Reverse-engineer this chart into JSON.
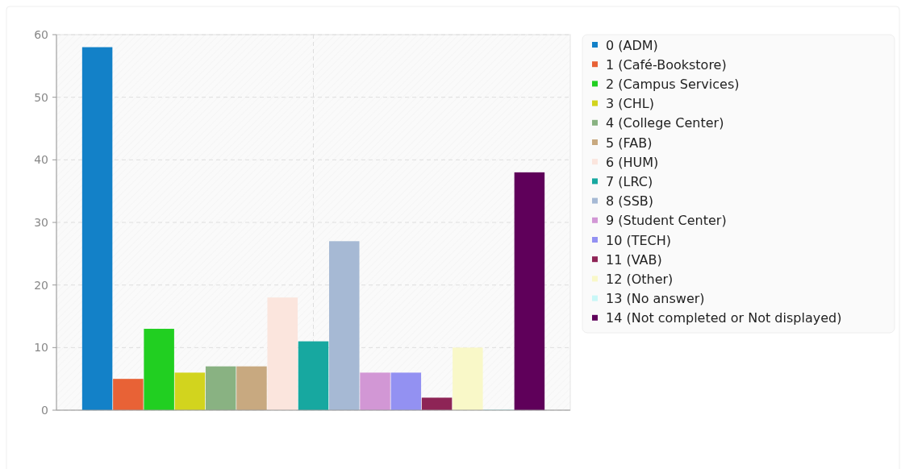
{
  "chart_data": {
    "type": "bar",
    "categories": [
      null
    ],
    "ylim": [
      0,
      60
    ],
    "yticks": [
      0,
      10,
      20,
      30,
      40,
      50,
      60
    ],
    "grid": true,
    "legend": "top right",
    "series": [
      {
        "name": "0 (ADM)",
        "color": "#1381c8",
        "values": [
          58
        ]
      },
      {
        "name": "1 (Café-Bookstore)",
        "color": "#e86236",
        "values": [
          5
        ]
      },
      {
        "name": "2 (Campus Services)",
        "color": "#21cf21",
        "values": [
          13
        ]
      },
      {
        "name": "3 (CHL)",
        "color": "#d2d41e",
        "values": [
          6
        ]
      },
      {
        "name": "4 (College Center)",
        "color": "#89b282",
        "values": [
          7
        ]
      },
      {
        "name": "5 (FAB)",
        "color": "#c8a980",
        "values": [
          7
        ]
      },
      {
        "name": "6 (HUM)",
        "color": "#fbe5dd",
        "values": [
          18
        ]
      },
      {
        "name": "7 (LRC)",
        "color": "#17a8a0",
        "values": [
          11
        ]
      },
      {
        "name": "8 (SSB)",
        "color": "#a6b9d4",
        "values": [
          27
        ]
      },
      {
        "name": "9 (Student Center)",
        "color": "#d297d5",
        "values": [
          6
        ]
      },
      {
        "name": "10 (TECH)",
        "color": "#9391f2",
        "values": [
          6
        ]
      },
      {
        "name": "11 (VAB)",
        "color": "#8e2456",
        "values": [
          2
        ]
      },
      {
        "name": "12 (Other)",
        "color": "#f9f8c8",
        "values": [
          10
        ]
      },
      {
        "name": "13 (No answer)",
        "color": "#c8f7f7",
        "values": [
          0
        ]
      },
      {
        "name": "14 (Not completed or Not displayed)",
        "color": "#5f005a",
        "values": [
          38
        ]
      }
    ]
  }
}
